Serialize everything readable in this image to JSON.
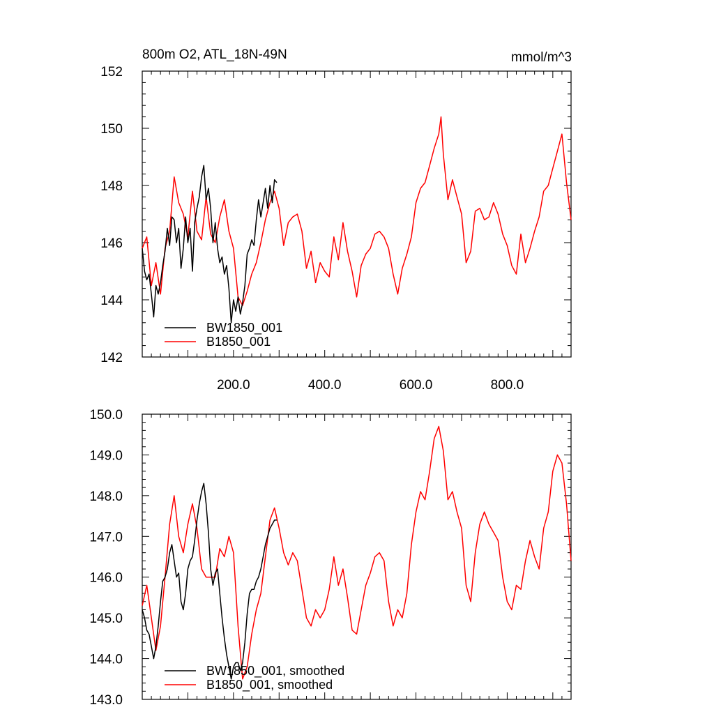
{
  "chart_data": [
    {
      "type": "line",
      "title": "800m O2, ATL_18N-49N",
      "units": "mmol/m^3",
      "xlim": [
        0,
        940
      ],
      "ylim": [
        142,
        152
      ],
      "x_ticks": [
        200,
        400,
        600,
        800
      ],
      "x_tick_labels": [
        "200.0",
        "400.0",
        "600.0",
        "800.0"
      ],
      "y_ticks": [
        142,
        144,
        146,
        148,
        150,
        152
      ],
      "y_tick_labels": [
        "142",
        "144",
        "146",
        "148",
        "150",
        "152"
      ],
      "grid": false,
      "legend_position": "bottom-left",
      "series": [
        {
          "name": "BW1850_001",
          "color": "#000000",
          "x": [
            0,
            5,
            10,
            15,
            20,
            25,
            30,
            35,
            40,
            45,
            50,
            55,
            60,
            65,
            70,
            75,
            80,
            85,
            90,
            95,
            100,
            105,
            110,
            115,
            120,
            125,
            130,
            135,
            140,
            145,
            150,
            155,
            160,
            165,
            170,
            175,
            180,
            185,
            190,
            195,
            200,
            205,
            210,
            215,
            220,
            225,
            230,
            235,
            240,
            245,
            250,
            255,
            260,
            265,
            270,
            275,
            280,
            285,
            290,
            295
          ],
          "values": [
            145.8,
            145.0,
            144.7,
            144.9,
            144.2,
            143.4,
            144.5,
            144.2,
            144.6,
            145.2,
            145.7,
            146.5,
            145.9,
            146.9,
            146.8,
            146.0,
            146.5,
            145.1,
            145.8,
            146.9,
            146.0,
            146.5,
            145.0,
            146.7,
            147.2,
            147.6,
            148.3,
            148.7,
            147.5,
            147.9,
            147.2,
            146.0,
            146.7,
            145.8,
            145.3,
            145.5,
            144.9,
            145.2,
            144.4,
            143.2,
            144.0,
            143.6,
            144.1,
            143.5,
            143.9,
            144.5,
            145.6,
            145.8,
            146.1,
            145.9,
            146.8,
            147.5,
            146.9,
            147.4,
            147.9,
            147.2,
            148.0,
            147.4,
            148.2,
            148.1
          ]
        },
        {
          "name": "B1850_001",
          "color": "#ff0000",
          "x": [
            0,
            10,
            20,
            30,
            40,
            50,
            60,
            70,
            80,
            90,
            100,
            110,
            120,
            130,
            140,
            150,
            160,
            170,
            180,
            190,
            200,
            210,
            220,
            230,
            240,
            250,
            260,
            270,
            280,
            290,
            300,
            310,
            320,
            330,
            340,
            350,
            360,
            370,
            380,
            390,
            400,
            410,
            420,
            430,
            440,
            450,
            460,
            470,
            480,
            490,
            500,
            510,
            520,
            530,
            540,
            550,
            560,
            570,
            580,
            590,
            600,
            610,
            620,
            630,
            640,
            650,
            655,
            660,
            670,
            680,
            690,
            700,
            710,
            720,
            730,
            740,
            750,
            760,
            770,
            780,
            790,
            800,
            810,
            820,
            830,
            840,
            850,
            860,
            870,
            880,
            890,
            900,
            910,
            920,
            930,
            940
          ],
          "values": [
            145.8,
            146.2,
            144.5,
            145.3,
            144.2,
            145.8,
            146.4,
            148.3,
            147.4,
            147.0,
            146.2,
            147.8,
            146.4,
            146.1,
            147.6,
            146.3,
            146.0,
            146.9,
            147.5,
            146.4,
            145.8,
            144.1,
            143.8,
            144.3,
            144.9,
            145.3,
            146.0,
            146.8,
            147.4,
            147.8,
            147.2,
            145.9,
            146.7,
            146.9,
            147.0,
            146.4,
            145.1,
            145.7,
            144.6,
            145.3,
            145.0,
            144.8,
            146.2,
            145.4,
            146.7,
            145.7,
            145.0,
            144.1,
            145.2,
            145.6,
            145.8,
            146.3,
            146.4,
            146.2,
            145.8,
            144.9,
            144.2,
            145.1,
            145.6,
            146.2,
            147.4,
            147.9,
            148.1,
            148.7,
            149.3,
            149.8,
            150.4,
            149.1,
            147.5,
            148.2,
            147.6,
            147.0,
            145.3,
            145.7,
            147.1,
            147.2,
            146.8,
            146.9,
            147.4,
            147.0,
            146.3,
            145.9,
            145.2,
            144.9,
            146.3,
            145.3,
            145.8,
            146.4,
            146.9,
            147.8,
            148.0,
            148.6,
            149.2,
            149.8,
            148.1,
            146.8
          ]
        }
      ]
    },
    {
      "type": "line",
      "title": "",
      "xlim": [
        0,
        940
      ],
      "ylim": [
        143,
        150
      ],
      "y_ticks": [
        143,
        144,
        145,
        146,
        147,
        148,
        149,
        150
      ],
      "y_tick_labels": [
        "143.0",
        "144.0",
        "145.0",
        "146.0",
        "147.0",
        "148.0",
        "149.0",
        "150.0"
      ],
      "grid": false,
      "legend_position": "bottom-left",
      "series": [
        {
          "name": "BW1850_001, smoothed",
          "color": "#000000",
          "x": [
            0,
            5,
            10,
            15,
            20,
            25,
            30,
            35,
            40,
            45,
            50,
            55,
            60,
            65,
            70,
            75,
            80,
            85,
            90,
            95,
            100,
            105,
            110,
            115,
            120,
            125,
            130,
            135,
            140,
            145,
            150,
            155,
            160,
            165,
            170,
            175,
            180,
            185,
            190,
            195,
            200,
            205,
            210,
            215,
            220,
            225,
            230,
            235,
            240,
            245,
            250,
            255,
            260,
            265,
            270,
            275,
            280,
            285,
            290,
            295
          ],
          "values": [
            145.2,
            145.0,
            144.7,
            144.6,
            144.3,
            144.0,
            144.3,
            144.8,
            145.4,
            145.9,
            146.0,
            146.2,
            146.6,
            146.8,
            146.4,
            146.0,
            146.1,
            145.4,
            145.2,
            145.6,
            146.2,
            146.4,
            146.5,
            146.9,
            147.4,
            147.8,
            148.1,
            148.3,
            147.8,
            147.1,
            146.2,
            145.8,
            146.1,
            146.2,
            145.6,
            145.0,
            144.5,
            144.1,
            143.8,
            143.5,
            143.8,
            143.9,
            143.9,
            143.7,
            143.9,
            144.4,
            145.1,
            145.6,
            145.7,
            145.7,
            145.9,
            146.0,
            146.2,
            146.5,
            146.8,
            147.0,
            147.2,
            147.3,
            147.4,
            147.4
          ]
        },
        {
          "name": "B1850_001, smoothed",
          "color": "#ff0000",
          "x": [
            0,
            10,
            20,
            30,
            40,
            50,
            60,
            70,
            80,
            90,
            100,
            110,
            120,
            130,
            140,
            150,
            160,
            170,
            180,
            190,
            200,
            210,
            220,
            230,
            240,
            250,
            260,
            270,
            280,
            290,
            300,
            310,
            320,
            330,
            340,
            350,
            360,
            370,
            380,
            390,
            400,
            410,
            420,
            430,
            440,
            450,
            460,
            470,
            480,
            490,
            500,
            510,
            520,
            530,
            540,
            550,
            560,
            570,
            580,
            590,
            600,
            610,
            620,
            630,
            640,
            650,
            660,
            670,
            680,
            690,
            700,
            710,
            720,
            730,
            740,
            750,
            760,
            770,
            780,
            790,
            800,
            810,
            820,
            830,
            840,
            850,
            860,
            870,
            880,
            890,
            900,
            910,
            920,
            930,
            940
          ],
          "values": [
            145.3,
            145.8,
            145.0,
            144.2,
            144.8,
            146.0,
            147.3,
            148.0,
            147.0,
            146.6,
            147.3,
            147.8,
            147.2,
            146.2,
            146.0,
            146.0,
            146.0,
            146.7,
            146.5,
            147.0,
            146.6,
            144.8,
            143.5,
            143.8,
            144.6,
            145.2,
            145.6,
            146.5,
            147.4,
            147.7,
            147.2,
            146.6,
            146.3,
            146.6,
            146.4,
            145.7,
            145.0,
            144.8,
            145.2,
            145.0,
            145.2,
            145.7,
            146.5,
            145.8,
            146.2,
            145.5,
            144.7,
            144.6,
            145.2,
            145.8,
            146.1,
            146.5,
            146.6,
            146.4,
            145.4,
            144.8,
            145.2,
            145.0,
            145.6,
            146.8,
            147.6,
            148.1,
            147.9,
            148.6,
            149.4,
            149.7,
            149.1,
            147.9,
            148.1,
            147.6,
            147.2,
            145.8,
            145.4,
            146.6,
            147.3,
            147.6,
            147.3,
            147.1,
            146.9,
            146.0,
            145.4,
            145.2,
            145.8,
            145.7,
            146.4,
            146.9,
            146.5,
            146.2,
            147.2,
            147.6,
            148.6,
            149.0,
            148.8,
            147.8,
            146.4
          ]
        }
      ]
    }
  ]
}
